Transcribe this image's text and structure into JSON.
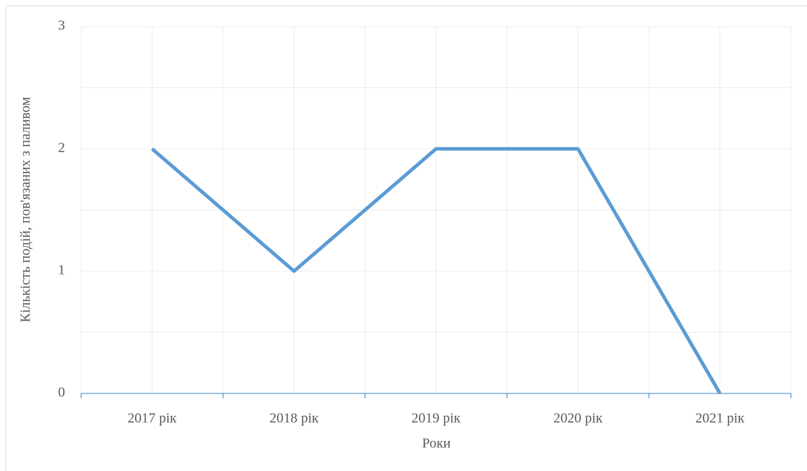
{
  "chart_data": {
    "type": "line",
    "categories": [
      "2017 рік",
      "2018 рік",
      "2019 рік",
      "2020 рік",
      "2021 рік"
    ],
    "series": [
      {
        "name": "Кількість подій, пов'язаних з паливом",
        "color": "#5b9bd5",
        "values": [
          2,
          1,
          2,
          2,
          0
        ]
      }
    ],
    "x_label": "Роки",
    "y_label": "Кількість подій, пов'язаних з паливом",
    "ylim": [
      0,
      3
    ],
    "yticks": [
      0,
      1,
      2,
      3
    ],
    "y_minor_ticks": [
      0.5,
      1.5,
      2.5
    ],
    "grid": true
  }
}
